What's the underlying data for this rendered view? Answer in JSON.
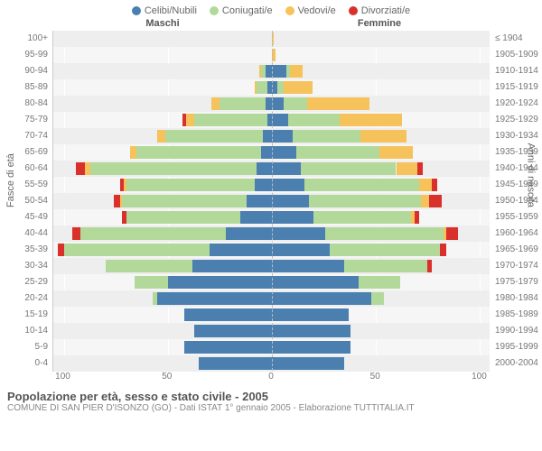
{
  "legend": [
    {
      "label": "Celibi/Nubili",
      "color": "#4a7fb0"
    },
    {
      "label": "Coniugati/e",
      "color": "#b3d99a"
    },
    {
      "label": "Vedovi/e",
      "color": "#f6c25b"
    },
    {
      "label": "Divorziati/e",
      "color": "#d9302c"
    }
  ],
  "headers": {
    "male": "Maschi",
    "female": "Femmine"
  },
  "axis_left_title": "Fasce di età",
  "axis_right_title": "Anni di nascita",
  "x_axis": {
    "max": 105,
    "ticks": [
      100,
      50,
      0,
      50,
      100
    ]
  },
  "colors": {
    "celibi": "#4a7fb0",
    "coniugati": "#b3d99a",
    "vedovi": "#f6c25b",
    "divorziati": "#d9302c",
    "plot_bg": "#f6f6f6",
    "alt_bg": "#eeeeee",
    "grid": "#ffffff"
  },
  "rows": [
    {
      "age": "100+",
      "birth": "≤ 1904",
      "m": {
        "cel": 0,
        "con": 0,
        "ved": 0,
        "div": 0
      },
      "f": {
        "cel": 0,
        "con": 0,
        "ved": 1,
        "div": 0
      }
    },
    {
      "age": "95-99",
      "birth": "1905-1909",
      "m": {
        "cel": 0,
        "con": 0,
        "ved": 0,
        "div": 0
      },
      "f": {
        "cel": 0,
        "con": 0,
        "ved": 2,
        "div": 0
      }
    },
    {
      "age": "90-94",
      "birth": "1910-1914",
      "m": {
        "cel": 3,
        "con": 2,
        "ved": 1,
        "div": 0
      },
      "f": {
        "cel": 7,
        "con": 2,
        "ved": 6,
        "div": 0
      }
    },
    {
      "age": "85-89",
      "birth": "1915-1919",
      "m": {
        "cel": 2,
        "con": 5,
        "ved": 1,
        "div": 0
      },
      "f": {
        "cel": 3,
        "con": 3,
        "ved": 14,
        "div": 0
      }
    },
    {
      "age": "80-84",
      "birth": "1920-1924",
      "m": {
        "cel": 3,
        "con": 22,
        "ved": 4,
        "div": 0
      },
      "f": {
        "cel": 6,
        "con": 11,
        "ved": 30,
        "div": 0
      }
    },
    {
      "age": "75-79",
      "birth": "1925-1929",
      "m": {
        "cel": 2,
        "con": 35,
        "ved": 4,
        "div": 2
      },
      "f": {
        "cel": 8,
        "con": 25,
        "ved": 30,
        "div": 0
      }
    },
    {
      "age": "70-74",
      "birth": "1930-1934",
      "m": {
        "cel": 4,
        "con": 47,
        "ved": 4,
        "div": 0
      },
      "f": {
        "cel": 10,
        "con": 33,
        "ved": 22,
        "div": 0
      }
    },
    {
      "age": "65-69",
      "birth": "1935-1939",
      "m": {
        "cel": 5,
        "con": 60,
        "ved": 3,
        "div": 0
      },
      "f": {
        "cel": 12,
        "con": 40,
        "ved": 16,
        "div": 0
      }
    },
    {
      "age": "60-64",
      "birth": "1940-1944",
      "m": {
        "cel": 7,
        "con": 80,
        "ved": 3,
        "div": 4
      },
      "f": {
        "cel": 14,
        "con": 46,
        "ved": 10,
        "div": 3
      }
    },
    {
      "age": "55-59",
      "birth": "1945-1949",
      "m": {
        "cel": 8,
        "con": 62,
        "ved": 1,
        "div": 2
      },
      "f": {
        "cel": 16,
        "con": 55,
        "ved": 6,
        "div": 3
      }
    },
    {
      "age": "50-54",
      "birth": "1950-1954",
      "m": {
        "cel": 12,
        "con": 60,
        "ved": 1,
        "div": 3
      },
      "f": {
        "cel": 18,
        "con": 54,
        "ved": 4,
        "div": 6
      }
    },
    {
      "age": "45-49",
      "birth": "1955-1959",
      "m": {
        "cel": 15,
        "con": 55,
        "ved": 0,
        "div": 2
      },
      "f": {
        "cel": 20,
        "con": 47,
        "ved": 2,
        "div": 2
      }
    },
    {
      "age": "40-44",
      "birth": "1960-1964",
      "m": {
        "cel": 22,
        "con": 70,
        "ved": 0,
        "div": 4
      },
      "f": {
        "cel": 26,
        "con": 57,
        "ved": 1,
        "div": 6
      }
    },
    {
      "age": "35-39",
      "birth": "1965-1969",
      "m": {
        "cel": 30,
        "con": 70,
        "ved": 0,
        "div": 3
      },
      "f": {
        "cel": 28,
        "con": 53,
        "ved": 0,
        "div": 3
      }
    },
    {
      "age": "30-34",
      "birth": "1970-1974",
      "m": {
        "cel": 38,
        "con": 42,
        "ved": 0,
        "div": 0
      },
      "f": {
        "cel": 35,
        "con": 40,
        "ved": 0,
        "div": 2
      }
    },
    {
      "age": "25-29",
      "birth": "1975-1979",
      "m": {
        "cel": 50,
        "con": 16,
        "ved": 0,
        "div": 0
      },
      "f": {
        "cel": 42,
        "con": 20,
        "ved": 0,
        "div": 0
      }
    },
    {
      "age": "20-24",
      "birth": "1980-1984",
      "m": {
        "cel": 55,
        "con": 2,
        "ved": 0,
        "div": 0
      },
      "f": {
        "cel": 48,
        "con": 6,
        "ved": 0,
        "div": 0
      }
    },
    {
      "age": "15-19",
      "birth": "1985-1989",
      "m": {
        "cel": 42,
        "con": 0,
        "ved": 0,
        "div": 0
      },
      "f": {
        "cel": 37,
        "con": 0,
        "ved": 0,
        "div": 0
      }
    },
    {
      "age": "10-14",
      "birth": "1990-1994",
      "m": {
        "cel": 37,
        "con": 0,
        "ved": 0,
        "div": 0
      },
      "f": {
        "cel": 38,
        "con": 0,
        "ved": 0,
        "div": 0
      }
    },
    {
      "age": "5-9",
      "birth": "1995-1999",
      "m": {
        "cel": 42,
        "con": 0,
        "ved": 0,
        "div": 0
      },
      "f": {
        "cel": 38,
        "con": 0,
        "ved": 0,
        "div": 0
      }
    },
    {
      "age": "0-4",
      "birth": "2000-2004",
      "m": {
        "cel": 35,
        "con": 0,
        "ved": 0,
        "div": 0
      },
      "f": {
        "cel": 35,
        "con": 0,
        "ved": 0,
        "div": 0
      }
    }
  ],
  "title": "Popolazione per età, sesso e stato civile - 2005",
  "subtitle": "COMUNE DI SAN PIER D'ISONZO (GO) - Dati ISTAT 1° gennaio 2005 - Elaborazione TUTTITALIA.IT"
}
